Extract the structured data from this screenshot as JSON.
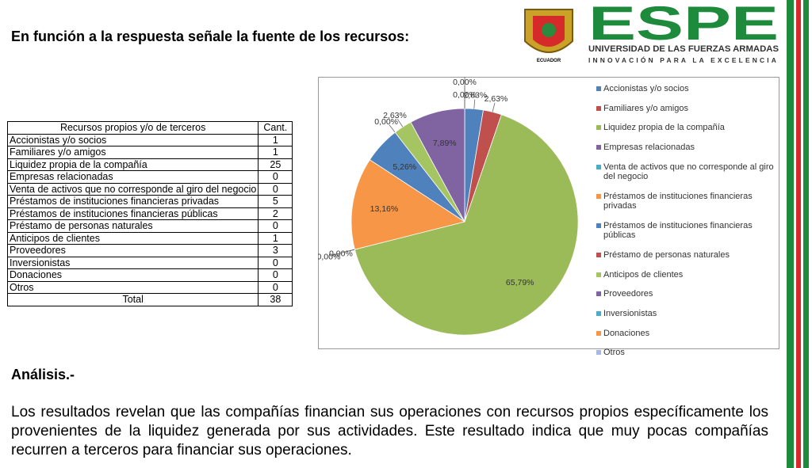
{
  "title": "En función a la respuesta señale la fuente de los recursos:",
  "logo": {
    "name": "ESPE",
    "subtitle": "UNIVERSIDAD DE LAS FUERZAS ARMADAS",
    "motto": "INNOVACIÓN PARA LA EXCELENCIA",
    "country": "ECUADOR"
  },
  "table": {
    "header": [
      "Recursos propios y/o de terceros",
      "Cant."
    ],
    "rows": [
      [
        "Accionistas y/o socios",
        1
      ],
      [
        "Familiares y/o amigos",
        1
      ],
      [
        "Liquidez propia de la compañía",
        25
      ],
      [
        "Empresas relacionadas",
        0
      ],
      [
        "Venta de activos que no corresponde al giro del negocio",
        0
      ],
      [
        "Préstamos de instituciones financieras privadas",
        5
      ],
      [
        "Préstamos de instituciones financieras públicas",
        2
      ],
      [
        "Préstamo de personas naturales",
        0
      ],
      [
        "Anticipos de clientes",
        1
      ],
      [
        "Proveedores",
        3
      ],
      [
        "Inversionistas",
        0
      ],
      [
        "Donaciones",
        0
      ],
      [
        "Otros",
        0
      ]
    ],
    "total": [
      "Total",
      38
    ]
  },
  "chart_data": {
    "type": "pie",
    "categories": [
      "Accionistas y/o socios",
      "Familiares y/o amigos",
      "Liquidez propia de la compañía",
      "Empresas relacionadas",
      "Venta de activos que no corresponde al giro del negocio",
      "Préstamos de instituciones financieras privadas",
      "Préstamos de instituciones financieras públicas",
      "Préstamo de personas naturales",
      "Anticipos de clientes",
      "Proveedores",
      "Inversionistas",
      "Donaciones",
      "Otros"
    ],
    "values": [
      2.63,
      2.63,
      65.79,
      0,
      0,
      13.16,
      5.26,
      0,
      2.63,
      7.89,
      0,
      0,
      0
    ],
    "value_labels": [
      "2,63%",
      "2,63%",
      "65,79%",
      "0,00%",
      "0,00%",
      "13,16%",
      "5,26%",
      "0,00%",
      "2,63%",
      "7,89%",
      "0,00%",
      "0,00%",
      "0,00%"
    ],
    "colors": [
      "#4f81bd",
      "#c0504d",
      "#9bbb59",
      "#8064a2",
      "#4bacc6",
      "#f79646",
      "#4f81bd",
      "#c0504d",
      "#a5c563",
      "#8064a2",
      "#4bacc6",
      "#f79646",
      "#a7b9e3"
    ],
    "legend": "right"
  },
  "analysis": {
    "heading": "Análisis.-",
    "text": "Los resultados revelan que las compañías financian sus operaciones con recursos propios específicamente los provenientes de la liquidez generada por sus actividades. Este resultado indica que muy pocas compañías recurren a terceros para financiar sus operaciones."
  }
}
